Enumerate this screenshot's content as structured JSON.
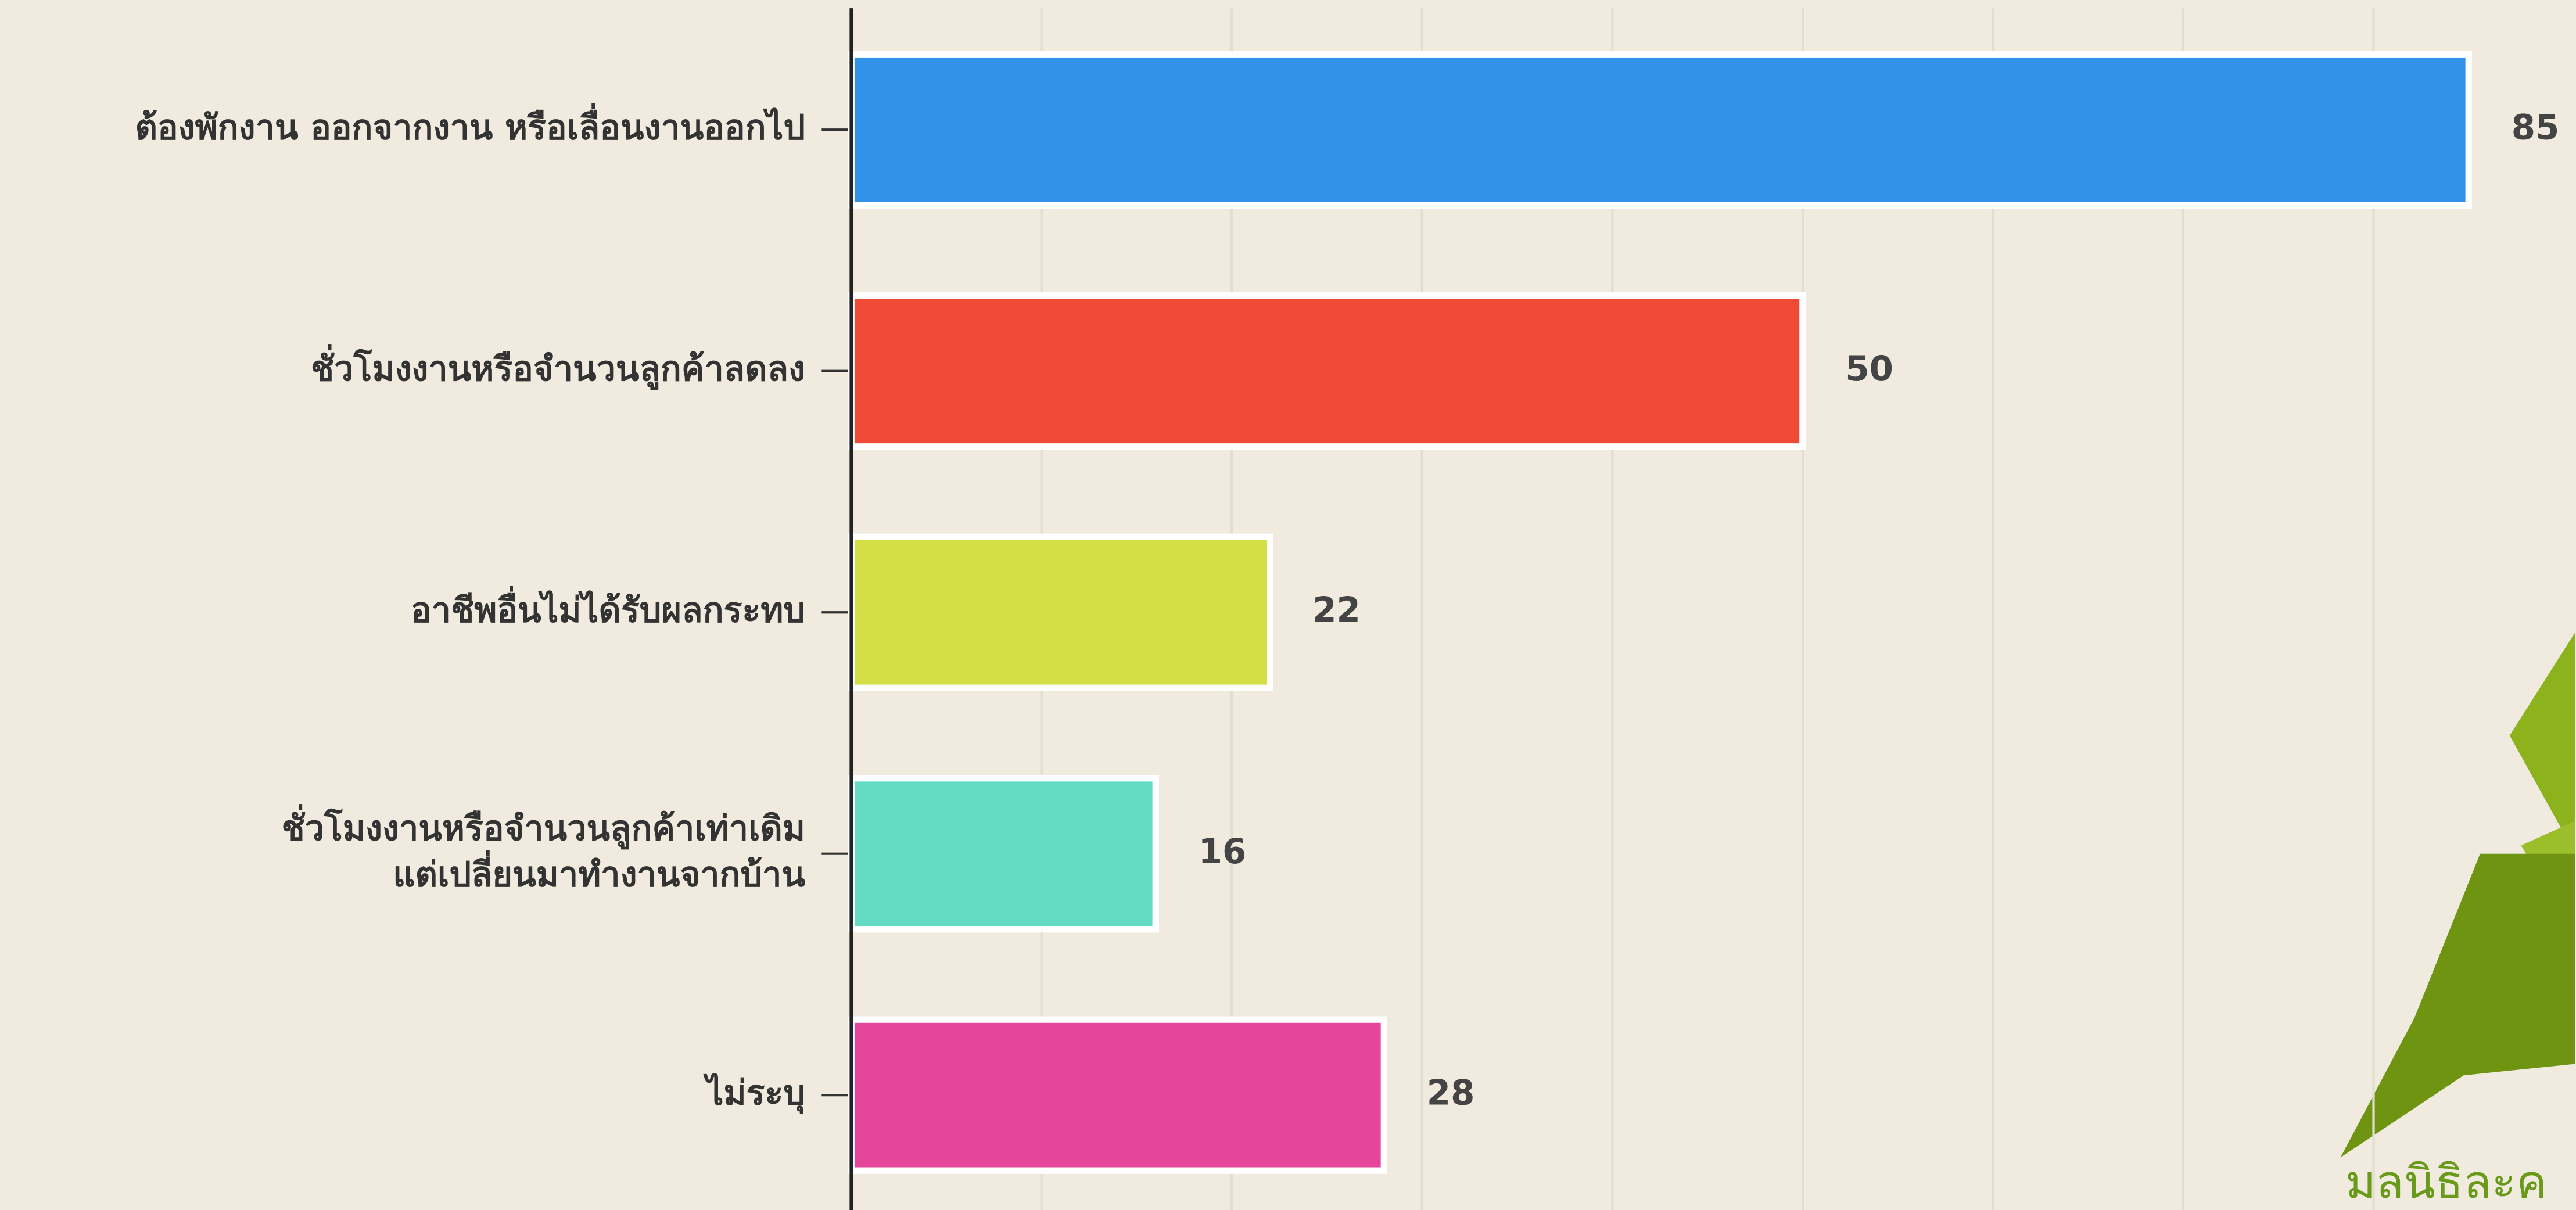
{
  "chart_data": {
    "type": "bar",
    "orientation": "horizontal",
    "categories": [
      "ต้องพักงาน ออกจากงาน หรือเลื่อนงานออกไป",
      "ชั่วโมงงานหรือจำนวนลูกค้าลดลง",
      "อาชีพอื่นไม่ได้รับผลกระทบ",
      "ชั่วโมงงานหรือจำนวนลูกค้าเท่าเดิม\nแต่เปลี่ยนมาทำงานจากบ้าน",
      "ไม่ระบุ"
    ],
    "values": [
      85,
      50,
      22,
      16,
      28
    ],
    "colors": [
      "#3192e8",
      "#ef4b36",
      "#d4df47",
      "#63dcc3",
      "#e5459a"
    ],
    "xlim": [
      0,
      90
    ],
    "xticks": [
      0,
      10,
      20,
      30,
      40,
      50,
      60,
      70,
      80
    ],
    "grid": true
  },
  "logo_text": "มลนิธิละค"
}
